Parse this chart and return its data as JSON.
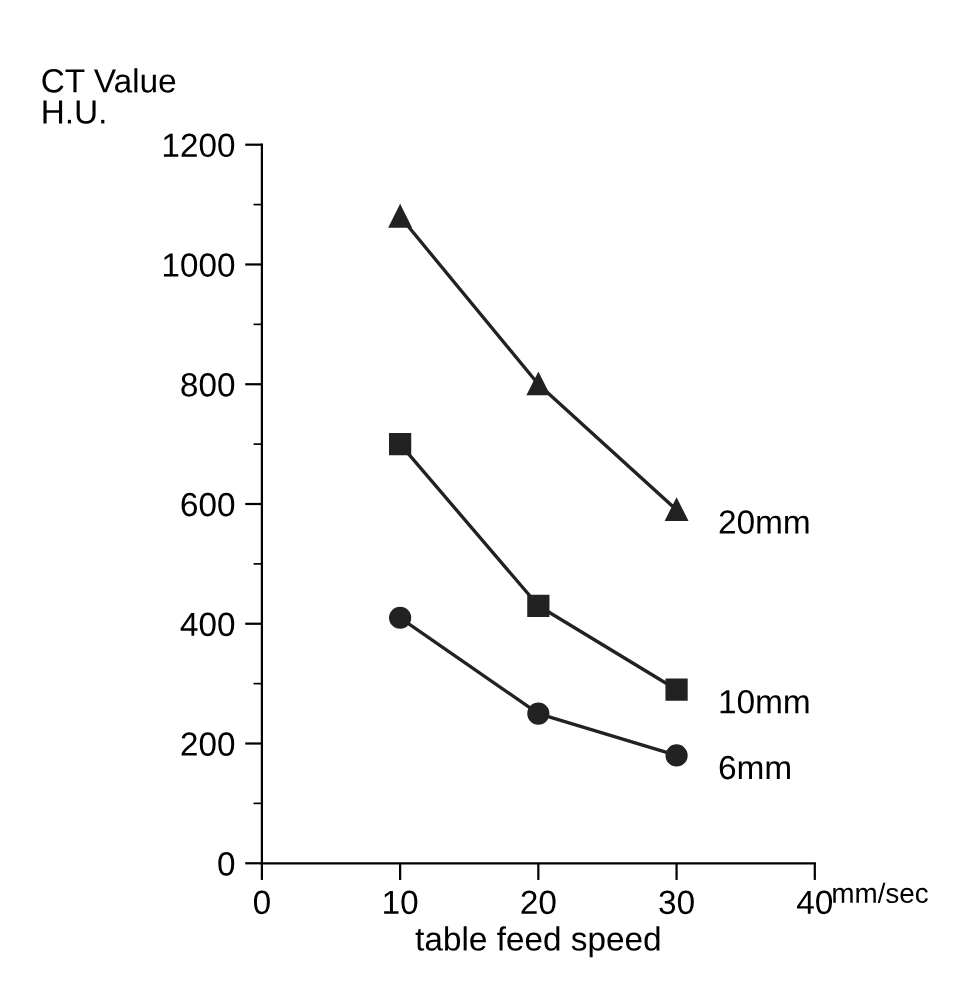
{
  "chart_data": {
    "type": "line",
    "xlabel": "table feed speed",
    "ylabel": "CT Value\nH.U.",
    "x": [
      10,
      20,
      30
    ],
    "series": [
      {
        "name": "20mm",
        "color": "#222222",
        "marker": "triangle",
        "values": [
          1080,
          800,
          590
        ]
      },
      {
        "name": "10mm",
        "color": "#222222",
        "marker": "square",
        "values": [
          700,
          430,
          290
        ]
      },
      {
        "name": "6mm",
        "color": "#222222",
        "marker": "circle",
        "values": [
          410,
          250,
          180
        ]
      }
    ],
    "xlim": [
      0,
      40
    ],
    "xticks": [
      0,
      10,
      20,
      30,
      40
    ],
    "ylim": [
      0,
      1200
    ],
    "yticks": [
      0,
      200,
      400,
      600,
      800,
      1000,
      1200
    ],
    "annotations": [
      "mm/sec"
    ],
    "grid": false,
    "legend": false
  }
}
